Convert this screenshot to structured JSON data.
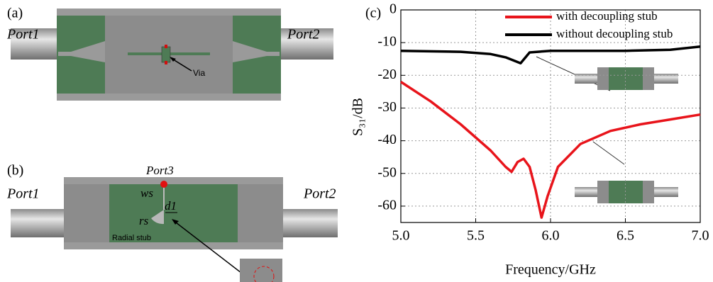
{
  "diagrams": {
    "a": {
      "panel": "(a)",
      "port_left": "Port1",
      "port_right": "Port2",
      "via": "Via"
    },
    "b": {
      "panel": "(b)",
      "port_left": "Port1",
      "port_right": "Port2",
      "port_top": "Port3",
      "ws": "ws",
      "d1": "d1",
      "rs": "rs",
      "stub": "Radial stub"
    }
  },
  "chart_data": {
    "type": "line",
    "panel": "(c)",
    "x_label": "Frequency/GHz",
    "y_label": "S₃₁/dB",
    "xlim": [
      5,
      7
    ],
    "ylim": [
      -65,
      0
    ],
    "xticks": [
      {
        "value": 5,
        "label": "5.0"
      },
      {
        "value": 5.5,
        "label": "5.5"
      },
      {
        "value": 6,
        "label": "6.0"
      },
      {
        "value": 6.5,
        "label": "6.5"
      },
      {
        "value": 7,
        "label": "7.0"
      }
    ],
    "yticks": [
      0,
      -10,
      -20,
      -30,
      -40,
      -50,
      -60
    ],
    "grid": true,
    "legend": "upper right",
    "series": [
      {
        "name": "with decoupling stub",
        "color": "#e8141b",
        "x": [
          5.0,
          5.2,
          5.4,
          5.6,
          5.7,
          5.74,
          5.78,
          5.82,
          5.86,
          5.9,
          5.94,
          5.98,
          6.05,
          6.2,
          6.4,
          6.6,
          6.8,
          7.0
        ],
        "values": [
          -22,
          -28,
          -35,
          -43,
          -48,
          -49.5,
          -46.5,
          -45.5,
          -48,
          -55,
          -63.5,
          -57,
          -48,
          -41,
          -37,
          -35,
          -33.5,
          -32
        ]
      },
      {
        "name": "without decoupling stub",
        "color": "#000000",
        "x": [
          5.0,
          5.4,
          5.6,
          5.7,
          5.8,
          5.86,
          6.0,
          6.5,
          6.8,
          7.0
        ],
        "values": [
          -12.5,
          -12.8,
          -13.5,
          -14.5,
          -16.3,
          -13,
          -12.5,
          -12.5,
          -12.2,
          -11.2
        ]
      }
    ]
  }
}
